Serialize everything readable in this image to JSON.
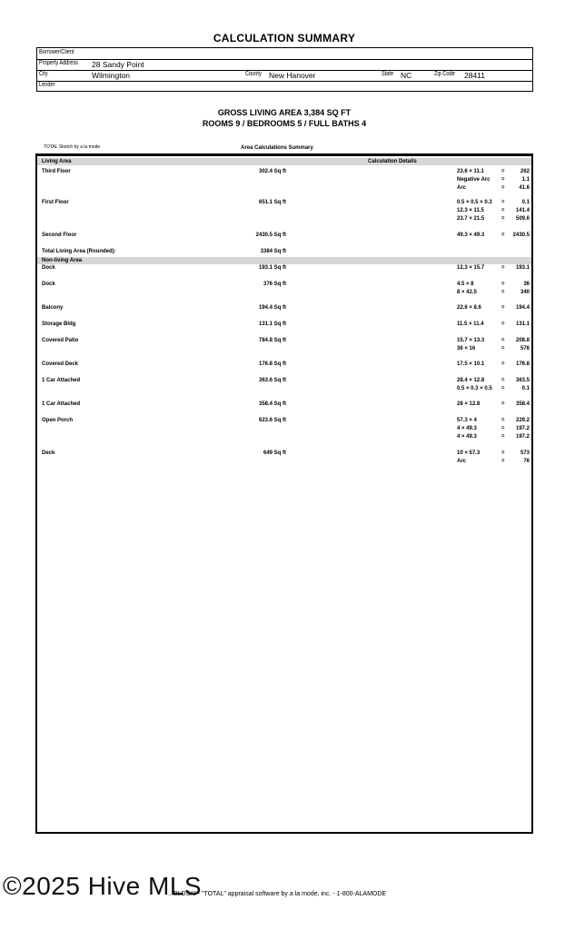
{
  "title": "CALCULATION SUMMARY",
  "info": {
    "borrower_label": "Borrower/Client",
    "borrower": "",
    "address_label": "Property Address",
    "address": "28 Sandy Point",
    "city_label": "City",
    "city": "Wilmington",
    "county_label": "County",
    "county": "New Hanover",
    "state_label": "State",
    "state": "NC",
    "zip_label": "Zip Code",
    "zip": "28411",
    "lender_label": "Lender",
    "lender": ""
  },
  "summary": {
    "gla": "GROSS LIVING AREA 3,384 SQ FT",
    "rooms": "ROOMS 9 / BEDROOMS 5 / FULL BATHS 4"
  },
  "sketch_credit": "TOTAL Sketch by a la mode",
  "table_title": "Area Calculations Summary",
  "headers": {
    "living": "Living Area",
    "details": "Calculation Details",
    "nonliving": "Non-living Area"
  },
  "living": [
    {
      "name": "Third Floor",
      "area": "302.4 Sq ft",
      "calc": [
        [
          "23.6 × 11.1",
          "262"
        ],
        [
          "Negative Arc",
          "1.1"
        ],
        [
          "Arc",
          "41.6"
        ]
      ]
    },
    {
      "name": "First Floor",
      "area": "651.1 Sq ft",
      "calc": [
        [
          "0.5 × 0.5 × 0.3",
          "0.1"
        ],
        [
          "12.3 × 11.5",
          "141.4"
        ],
        [
          "23.7 × 21.5",
          "509.6"
        ]
      ]
    },
    {
      "name": "Second Floor",
      "area": "2430.5 Sq ft",
      "calc": [
        [
          "49.3 × 49.3",
          "2430.5"
        ]
      ]
    }
  ],
  "total": {
    "label": "Total Living Area (Rounded):",
    "area": "3384 Sq ft"
  },
  "nonliving": [
    {
      "name": "Dock",
      "area": "193.1 Sq ft",
      "calc": [
        [
          "12.3 × 15.7",
          "193.1"
        ]
      ]
    },
    {
      "name": "Dock",
      "area": "376 Sq ft",
      "calc": [
        [
          "4.5 × 8",
          "36"
        ],
        [
          "8 × 42.5",
          "340"
        ]
      ]
    },
    {
      "name": "Balcony",
      "area": "194.4 Sq ft",
      "calc": [
        [
          "22.6 × 8.6",
          "194.4"
        ]
      ]
    },
    {
      "name": "Storage Bldg",
      "area": "131.1 Sq ft",
      "calc": [
        [
          "11.5 × 11.4",
          "131.1"
        ]
      ]
    },
    {
      "name": "Covered Patio",
      "area": "784.8 Sq ft",
      "calc": [
        [
          "15.7 × 13.3",
          "208.8"
        ],
        [
          "36 × 16",
          "576"
        ]
      ]
    },
    {
      "name": "Covered Deck",
      "area": "176.8 Sq ft",
      "calc": [
        [
          "17.5 × 10.1",
          "176.8"
        ]
      ]
    },
    {
      "name": "1 Car Attached",
      "area": "363.6 Sq ft",
      "calc": [
        [
          "28.4 × 12.8",
          "363.5"
        ],
        [
          "0.5 × 0.3 × 0.5",
          "0.1"
        ]
      ]
    },
    {
      "name": "1 Car Attached",
      "area": "358.4 Sq ft",
      "calc": [
        [
          "28 × 12.8",
          "358.4"
        ]
      ]
    },
    {
      "name": "Open Porch",
      "area": "623.6 Sq ft",
      "calc": [
        [
          "57.3 × 4",
          "229.2"
        ],
        [
          "4 × 49.3",
          "197.2"
        ],
        [
          "4 × 49.3",
          "197.2"
        ]
      ]
    },
    {
      "name": "Deck",
      "area": "649 Sq ft",
      "calc": [
        [
          "10 × 57.3",
          "573"
        ],
        [
          "Arc",
          "76"
        ]
      ]
    }
  ],
  "eq": "=",
  "footer": "...BLDSKI - \"TOTAL\" appraisal software by a la mode, inc. - 1-800-ALAMODE",
  "watermark": "©2025 Hive MLS"
}
